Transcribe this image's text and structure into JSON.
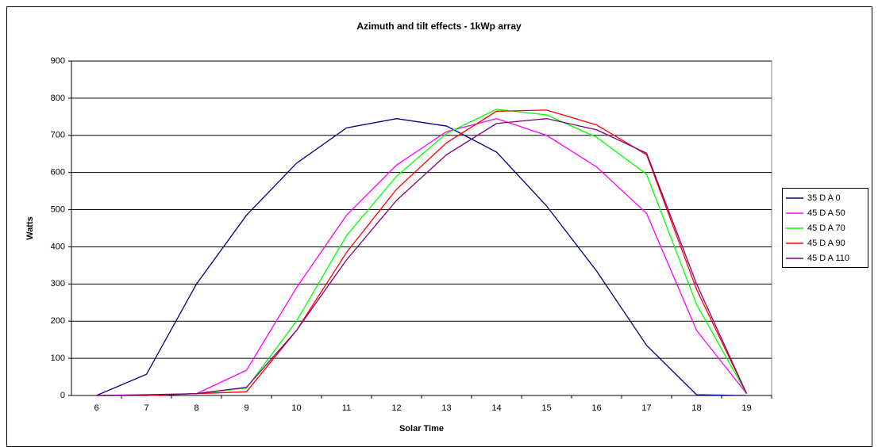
{
  "chart_data": {
    "type": "line",
    "title": "Azimuth and tilt effects - 1kWp array",
    "x_label": "Solar Time",
    "y_label": "Watts",
    "categories": [
      "6",
      "7",
      "8",
      "9",
      "10",
      "11",
      "12",
      "13",
      "14",
      "15",
      "16",
      "17",
      "18",
      "19"
    ],
    "series": [
      {
        "name": "35 D A 0",
        "color": "#000080",
        "values": [
          0,
          57,
          300,
          485,
          625,
          720,
          745,
          725,
          655,
          510,
          335,
          135,
          2,
          0
        ]
      },
      {
        "name": "45 D A 50",
        "color": "#ff00ff",
        "values": [
          0,
          0,
          5,
          68,
          290,
          485,
          620,
          710,
          745,
          700,
          615,
          490,
          175,
          5
        ]
      },
      {
        "name": "45 D A 70",
        "color": "#00ff00",
        "values": [
          0,
          0,
          5,
          20,
          200,
          430,
          590,
          705,
          770,
          755,
          695,
          595,
          245,
          5
        ]
      },
      {
        "name": "45 D A 90",
        "color": "#ff0000",
        "values": [
          0,
          0,
          5,
          10,
          175,
          385,
          555,
          680,
          765,
          768,
          728,
          648,
          285,
          5
        ]
      },
      {
        "name": "45 D A 110",
        "color": "#800080",
        "values": [
          0,
          2,
          5,
          22,
          175,
          365,
          525,
          648,
          732,
          745,
          715,
          652,
          300,
          5
        ]
      }
    ],
    "ylim": [
      0,
      900
    ],
    "yticks": [
      0,
      100,
      200,
      300,
      400,
      500,
      600,
      700,
      800,
      900
    ],
    "grid": true
  }
}
